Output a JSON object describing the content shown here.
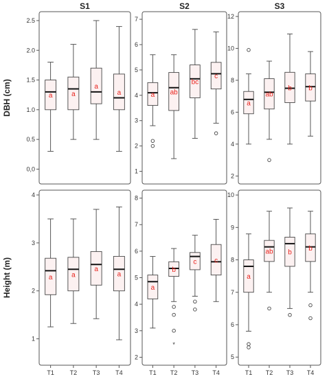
{
  "chart_data": {
    "type": "boxplot",
    "columns": [
      "S1",
      "S2",
      "S3"
    ],
    "rows": [
      "DBH (cm)",
      "Height (m)"
    ],
    "categories": [
      "T1",
      "T2",
      "T3",
      "T4"
    ],
    "panels": [
      {
        "row": "DBH (cm)",
        "column": "S1",
        "ylim": [
          -0.25,
          2.65
        ],
        "y_ticks": [
          0.0,
          0.5,
          1.0,
          1.5,
          2.0,
          2.5
        ],
        "y_tick_labels": [
          "0,0",
          "0.5",
          "1.0",
          "1.5",
          "2.0",
          "2.5"
        ],
        "boxes": [
          {
            "category": "T1",
            "min": 0.3,
            "q1": 1.0,
            "median": 1.3,
            "q3": 1.5,
            "max": 1.8,
            "outliers": [],
            "extremes": [],
            "label": "a"
          },
          {
            "category": "T2",
            "min": 0.5,
            "q1": 1.0,
            "median": 1.35,
            "q3": 1.55,
            "max": 2.1,
            "outliers": [],
            "extremes": [],
            "label": "a"
          },
          {
            "category": "T3",
            "min": 0.5,
            "q1": 1.1,
            "median": 1.3,
            "q3": 1.7,
            "max": 2.5,
            "outliers": [],
            "extremes": [],
            "label": "a"
          },
          {
            "category": "T4",
            "min": 0.3,
            "q1": 1.0,
            "median": 1.2,
            "q3": 1.6,
            "max": 2.4,
            "outliers": [],
            "extremes": [],
            "label": "a"
          }
        ]
      },
      {
        "row": "DBH (cm)",
        "column": "S2",
        "ylim": [
          0.5,
          7.3
        ],
        "y_ticks": [
          1,
          2,
          3,
          4,
          5,
          6,
          7
        ],
        "y_tick_labels": [
          "1",
          "2",
          "3",
          "4",
          "5",
          "6",
          "7"
        ],
        "boxes": [
          {
            "category": "T1",
            "min": 2.8,
            "q1": 3.6,
            "median": 4.1,
            "q3": 4.5,
            "max": 5.6,
            "outliers": [
              2.2,
              2.0
            ],
            "extremes": [],
            "label": "a"
          },
          {
            "category": "T2",
            "min": 1.5,
            "q1": 3.4,
            "median": 4.3,
            "q3": 4.9,
            "max": 5.6,
            "outliers": [],
            "extremes": [],
            "label": "ab"
          },
          {
            "category": "T3",
            "min": 2.3,
            "q1": 3.9,
            "median": 4.65,
            "q3": 5.2,
            "max": 6.6,
            "outliers": [],
            "extremes": [],
            "label": "bc"
          },
          {
            "category": "T4",
            "min": 2.9,
            "q1": 4.25,
            "median": 4.85,
            "q3": 5.3,
            "max": 6.5,
            "outliers": [
              2.5
            ],
            "extremes": [],
            "label": "c"
          }
        ]
      },
      {
        "row": "DBH (cm)",
        "column": "S3",
        "ylim": [
          1.5,
          12.3
        ],
        "y_ticks": [
          2,
          4,
          6,
          8,
          10,
          12
        ],
        "y_tick_labels": [
          "2",
          "4",
          "6",
          "8",
          "10",
          "12"
        ],
        "boxes": [
          {
            "category": "T1",
            "min": 4.0,
            "q1": 5.9,
            "median": 6.8,
            "q3": 7.3,
            "max": 8.4,
            "outliers": [
              9.9
            ],
            "extremes": [],
            "label": "a"
          },
          {
            "category": "T2",
            "min": 4.3,
            "q1": 6.2,
            "median": 7.25,
            "q3": 8.1,
            "max": 9.2,
            "outliers": [
              3.0
            ],
            "extremes": [],
            "label": "ab"
          },
          {
            "category": "T3",
            "min": 4.0,
            "q1": 6.6,
            "median": 7.5,
            "q3": 8.5,
            "max": 10.9,
            "outliers": [],
            "extremes": [],
            "label": "b"
          },
          {
            "category": "T4",
            "min": 4.5,
            "q1": 6.7,
            "median": 7.6,
            "q3": 8.4,
            "max": 9.8,
            "outliers": [],
            "extremes": [],
            "label": "b"
          }
        ]
      },
      {
        "row": "Height (m)",
        "column": "S1",
        "ylim": [
          0.45,
          4.1
        ],
        "y_ticks": [
          1,
          2,
          3,
          4
        ],
        "y_tick_labels": [
          "1",
          "2",
          "3",
          "4"
        ],
        "boxes": [
          {
            "category": "T1",
            "min": 1.25,
            "q1": 1.92,
            "median": 2.42,
            "q3": 2.68,
            "max": 3.5,
            "outliers": [],
            "extremes": [],
            "label": "a"
          },
          {
            "category": "T2",
            "min": 1.32,
            "q1": 2.0,
            "median": 2.45,
            "q3": 2.7,
            "max": 3.5,
            "outliers": [],
            "extremes": [],
            "label": "a"
          },
          {
            "category": "T3",
            "min": 1.42,
            "q1": 2.12,
            "median": 2.55,
            "q3": 2.82,
            "max": 3.7,
            "outliers": [],
            "extremes": [],
            "label": "a"
          },
          {
            "category": "T4",
            "min": 0.98,
            "q1": 2.0,
            "median": 2.45,
            "q3": 2.72,
            "max": 3.75,
            "outliers": [],
            "extremes": [],
            "label": "a"
          }
        ]
      },
      {
        "row": "Height (m)",
        "column": "S2",
        "ylim": [
          1.7,
          8.3
        ],
        "y_ticks": [
          2,
          3,
          4,
          5,
          6,
          7,
          8
        ],
        "y_tick_labels": [
          "2",
          "3",
          "4",
          "5",
          "6",
          "7",
          "8"
        ],
        "boxes": [
          {
            "category": "T1",
            "min": 3.1,
            "q1": 4.2,
            "median": 4.85,
            "q3": 5.1,
            "max": 5.8,
            "outliers": [],
            "extremes": [],
            "label": "a"
          },
          {
            "category": "T2",
            "min": 4.1,
            "q1": 5.05,
            "median": 5.35,
            "q3": 5.6,
            "max": 6.1,
            "outliers": [
              3.9,
              3.6,
              3.0
            ],
            "extremes": [
              2.5
            ],
            "label": "b"
          },
          {
            "category": "T3",
            "min": 4.3,
            "q1": 5.3,
            "median": 5.8,
            "q3": 5.95,
            "max": 6.6,
            "outliers": [
              4.1,
              3.8
            ],
            "extremes": [],
            "label": "c"
          },
          {
            "category": "T4",
            "min": 4.1,
            "q1": 5.1,
            "median": 5.6,
            "q3": 6.25,
            "max": 7.2,
            "outliers": [],
            "extremes": [],
            "label": "c"
          }
        ]
      },
      {
        "row": "Height (m)",
        "column": "S3",
        "ylim": [
          4.75,
          10.15
        ],
        "y_ticks": [
          5,
          6,
          7,
          8,
          9,
          10
        ],
        "y_tick_labels": [
          "5",
          "6",
          "7",
          "8",
          "9",
          "10"
        ],
        "boxes": [
          {
            "category": "T1",
            "min": 5.8,
            "q1": 7.0,
            "median": 7.8,
            "q3": 8.0,
            "max": 8.8,
            "outliers": [
              5.4,
              5.3
            ],
            "extremes": [],
            "label": "a"
          },
          {
            "category": "T2",
            "min": 7.0,
            "q1": 7.95,
            "median": 8.4,
            "q3": 8.6,
            "max": 9.5,
            "outliers": [
              6.5
            ],
            "extremes": [],
            "label": "ab"
          },
          {
            "category": "T3",
            "min": 6.5,
            "q1": 7.8,
            "median": 8.5,
            "q3": 8.7,
            "max": 9.6,
            "outliers": [
              6.3
            ],
            "extremes": [],
            "label": "b"
          },
          {
            "category": "T4",
            "min": 7.0,
            "q1": 7.95,
            "median": 8.4,
            "q3": 8.8,
            "max": 9.5,
            "outliers": [
              6.6,
              6.2
            ],
            "extremes": [],
            "label": "b"
          }
        ]
      }
    ]
  },
  "colors": {
    "box_fill": "#fcf1f1",
    "box_stroke": "#444444",
    "median": "#111111",
    "significance_label": "#e8221c",
    "frame": "#555555"
  }
}
